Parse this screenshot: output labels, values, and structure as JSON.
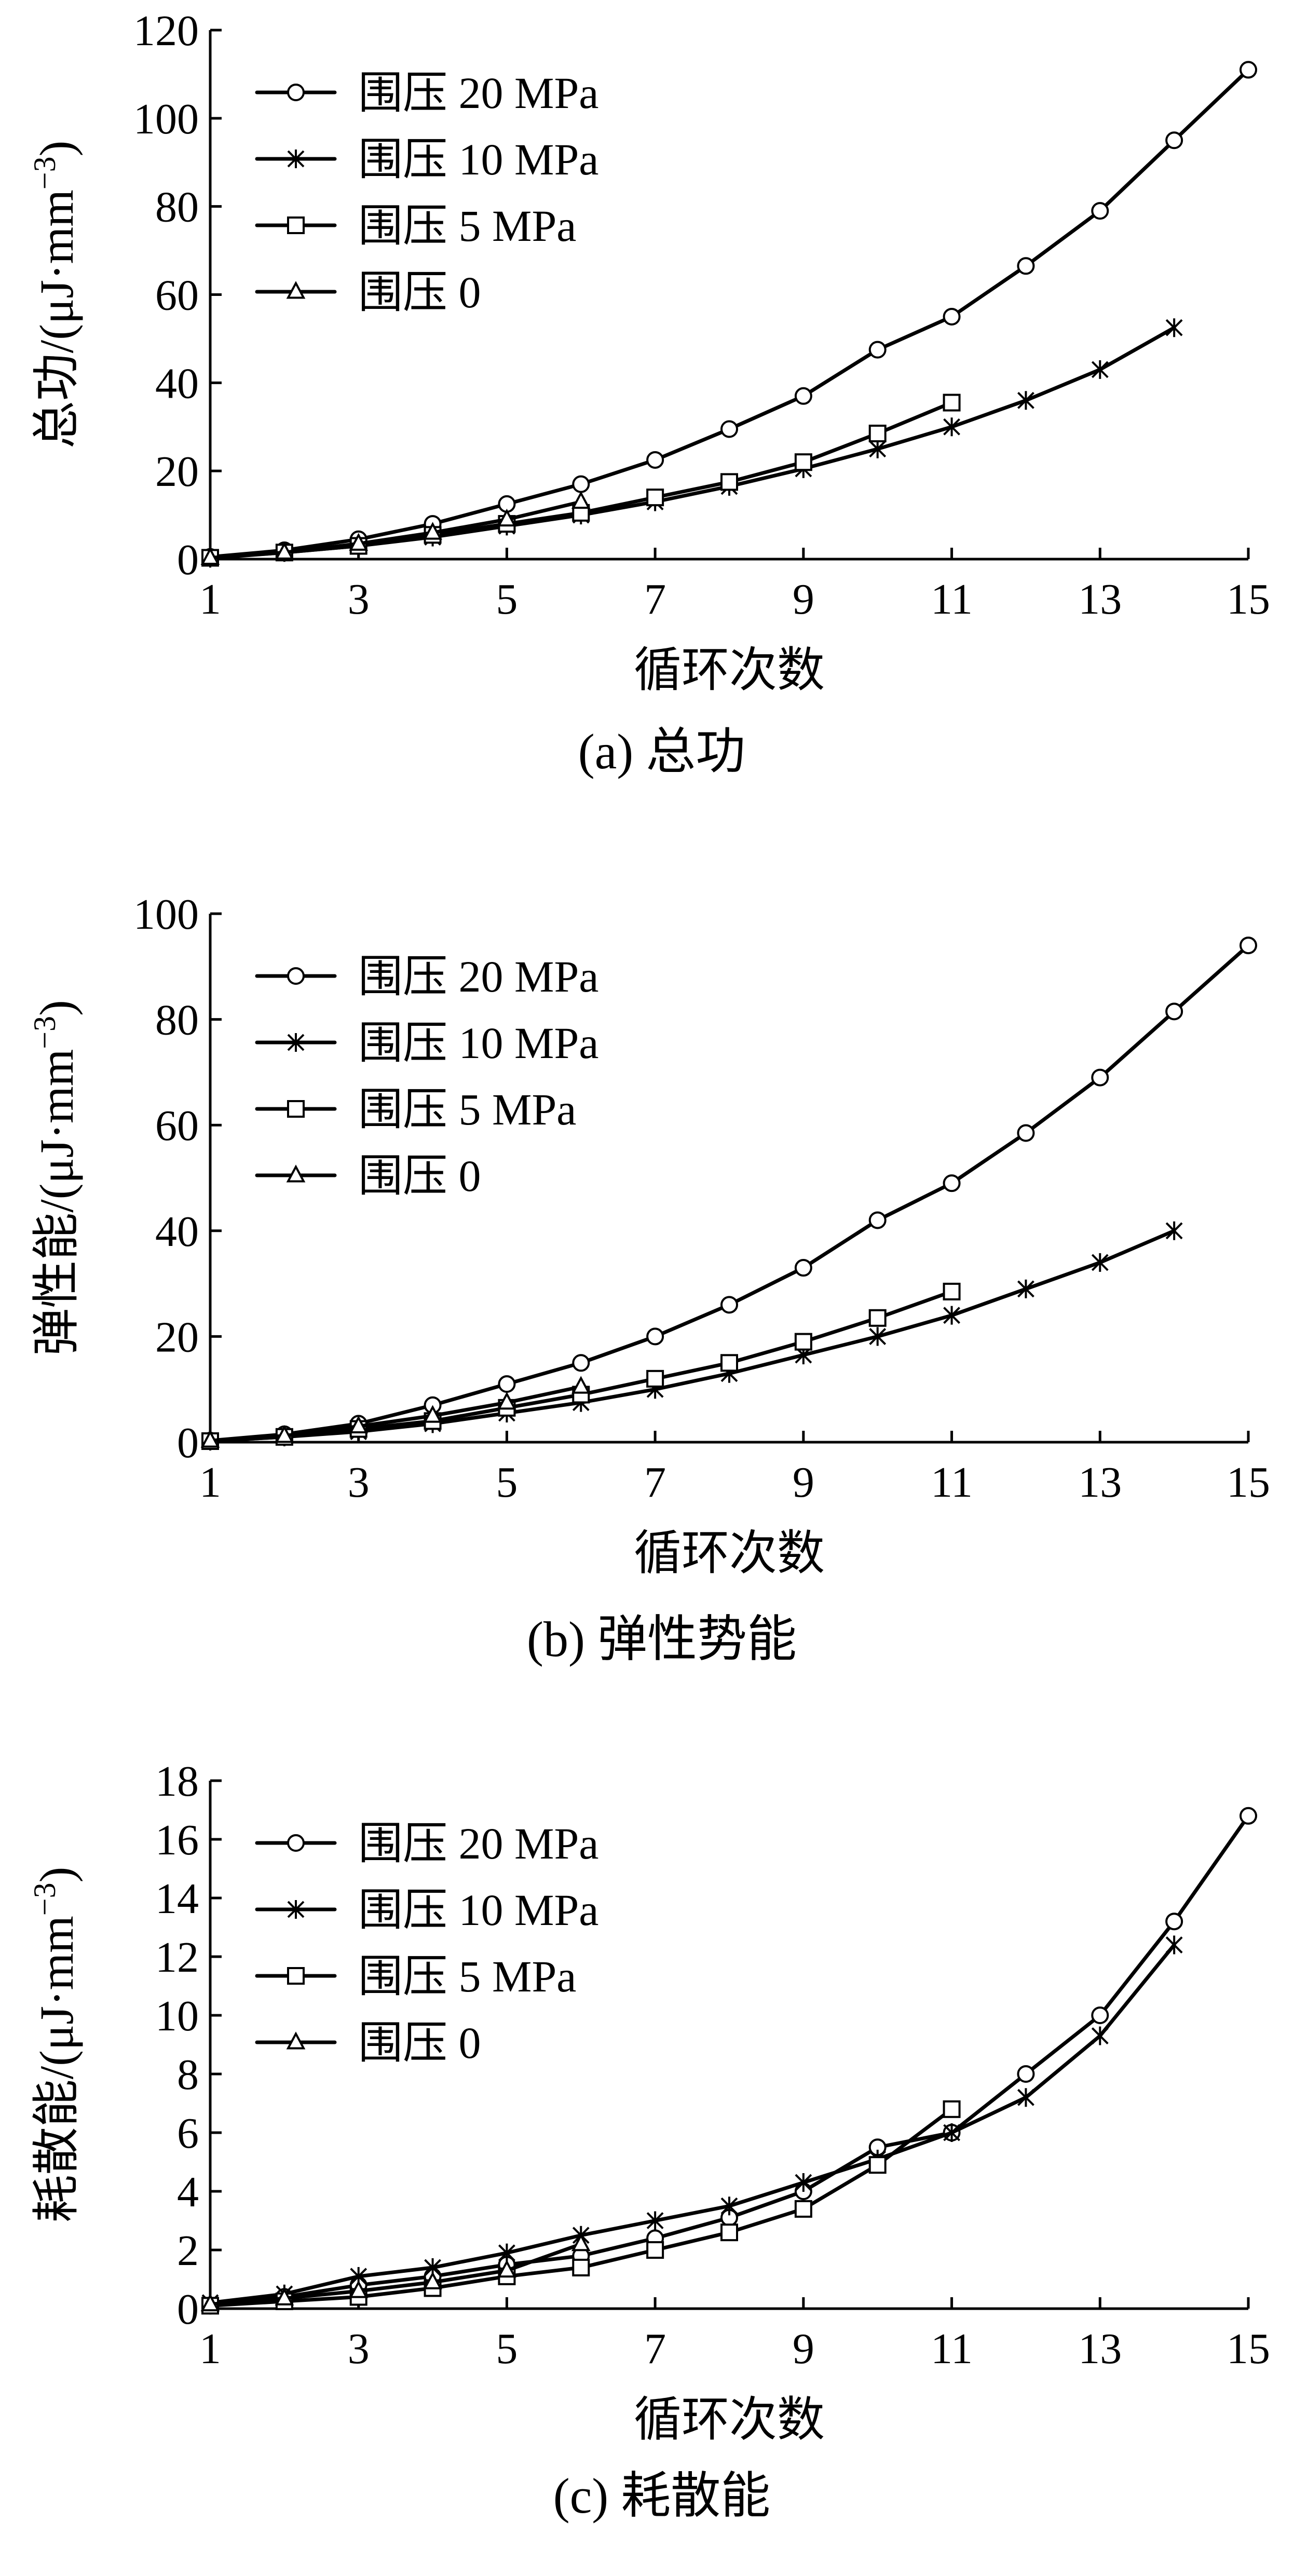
{
  "chart_data": [
    {
      "type": "line",
      "caption": "(a)  总功",
      "xlabel": "循环次数",
      "ylabel": "总功/(μJ·mm",
      "ylabel_sup": "−3",
      "ylabel_close": ")",
      "xlim": [
        1,
        15
      ],
      "ylim": [
        0,
        120
      ],
      "xticks": [
        1,
        3,
        5,
        7,
        9,
        11,
        13,
        15
      ],
      "yticks": [
        0,
        20,
        40,
        60,
        80,
        100,
        120
      ],
      "legend_position": "top-left",
      "series": [
        {
          "name": "围压 20 MPa",
          "marker": "circle",
          "x": [
            1,
            2,
            3,
            4,
            5,
            6,
            7,
            8,
            9,
            10,
            11,
            12,
            13,
            14,
            15
          ],
          "y": [
            0.5,
            2,
            4.5,
            8,
            12.5,
            17,
            22.5,
            29.5,
            37,
            47.5,
            55,
            66.5,
            79,
            95,
            111
          ]
        },
        {
          "name": "围压 10 MPa",
          "marker": "asterisk",
          "x": [
            1,
            2,
            3,
            4,
            5,
            6,
            7,
            8,
            9,
            10,
            11,
            12,
            13,
            14
          ],
          "y": [
            0.2,
            1.5,
            3,
            5,
            7.5,
            10,
            13,
            16.5,
            20.5,
            25,
            30,
            36,
            43,
            52.5
          ]
        },
        {
          "name": "围压 5 MPa",
          "marker": "square",
          "x": [
            1,
            2,
            3,
            4,
            5,
            6,
            7,
            8,
            9,
            10,
            11
          ],
          "y": [
            0.3,
            1.5,
            3,
            5.5,
            8,
            10.5,
            14,
            17.5,
            22,
            28.5,
            35.5
          ]
        },
        {
          "name": "围压 0",
          "marker": "triangle",
          "x": [
            1,
            2,
            3,
            4,
            5,
            6
          ],
          "y": [
            0.3,
            1.5,
            3.5,
            6,
            9,
            13
          ]
        }
      ]
    },
    {
      "type": "line",
      "caption": "(b)  弹性势能",
      "xlabel": "循环次数",
      "ylabel": "弹性能/(μJ·mm",
      "ylabel_sup": "−3",
      "ylabel_close": ")",
      "xlim": [
        1,
        15
      ],
      "ylim": [
        0,
        100
      ],
      "xticks": [
        1,
        3,
        5,
        7,
        9,
        11,
        13,
        15
      ],
      "yticks": [
        0,
        20,
        40,
        60,
        80,
        100
      ],
      "legend_position": "top-left",
      "series": [
        {
          "name": "围压 20 MPa",
          "marker": "circle",
          "x": [
            1,
            2,
            3,
            4,
            5,
            6,
            7,
            8,
            9,
            10,
            11,
            12,
            13,
            14,
            15
          ],
          "y": [
            0.3,
            1.5,
            3.5,
            7,
            11,
            15,
            20,
            26,
            33,
            42,
            49,
            58.5,
            69,
            81.5,
            94
          ]
        },
        {
          "name": "围压 10 MPa",
          "marker": "asterisk",
          "x": [
            1,
            2,
            3,
            4,
            5,
            6,
            7,
            8,
            9,
            10,
            11,
            12,
            13,
            14
          ],
          "y": [
            0.2,
            1,
            2,
            3.5,
            5.5,
            7.5,
            10,
            13,
            16.5,
            20,
            24,
            29,
            34,
            40
          ]
        },
        {
          "name": "围压 5 MPa",
          "marker": "square",
          "x": [
            1,
            2,
            3,
            4,
            5,
            6,
            7,
            8,
            9,
            10,
            11
          ],
          "y": [
            0.2,
            1,
            2.5,
            4,
            6.5,
            9,
            12,
            15,
            19,
            23.5,
            28.5
          ]
        },
        {
          "name": "围压 0",
          "marker": "triangle",
          "x": [
            1,
            2,
            3,
            4,
            5,
            6
          ],
          "y": [
            0.3,
            1.2,
            3,
            5,
            7.5,
            10.5
          ]
        }
      ]
    },
    {
      "type": "line",
      "caption": "(c)  耗散能",
      "xlabel": "循环次数",
      "ylabel": "耗散能/(μJ·mm",
      "ylabel_sup": "−3",
      "ylabel_close": ")",
      "xlim": [
        1,
        15
      ],
      "ylim": [
        0,
        18
      ],
      "xticks": [
        1,
        3,
        5,
        7,
        9,
        11,
        13,
        15
      ],
      "yticks": [
        0,
        2,
        4,
        6,
        8,
        10,
        12,
        14,
        16,
        18
      ],
      "legend_position": "top-left",
      "series": [
        {
          "name": "围压 20 MPa",
          "marker": "circle",
          "x": [
            1,
            2,
            3,
            4,
            5,
            6,
            7,
            8,
            9,
            10,
            11,
            12,
            13,
            14,
            15
          ],
          "y": [
            0.1,
            0.4,
            0.8,
            1.1,
            1.5,
            1.8,
            2.4,
            3.1,
            4.0,
            5.5,
            6.0,
            8.0,
            10.0,
            13.2,
            16.8
          ]
        },
        {
          "name": "围压 10 MPa",
          "marker": "asterisk",
          "x": [
            1,
            2,
            3,
            4,
            5,
            6,
            7,
            8,
            9,
            10,
            11,
            12,
            13,
            14
          ],
          "y": [
            0.2,
            0.5,
            1.1,
            1.4,
            1.9,
            2.5,
            3.0,
            3.5,
            4.3,
            5.1,
            6.0,
            7.2,
            9.3,
            12.4
          ]
        },
        {
          "name": "围压 5 MPa",
          "marker": "square",
          "x": [
            1,
            2,
            3,
            4,
            5,
            6,
            7,
            8,
            9,
            10,
            11
          ],
          "y": [
            0.1,
            0.25,
            0.4,
            0.7,
            1.1,
            1.4,
            2.0,
            2.6,
            3.4,
            4.9,
            6.8
          ]
        },
        {
          "name": "围压 0",
          "marker": "triangle",
          "x": [
            1,
            2,
            3,
            4,
            5,
            6
          ],
          "y": [
            0.15,
            0.35,
            0.6,
            0.9,
            1.3,
            2.2
          ]
        }
      ]
    }
  ]
}
